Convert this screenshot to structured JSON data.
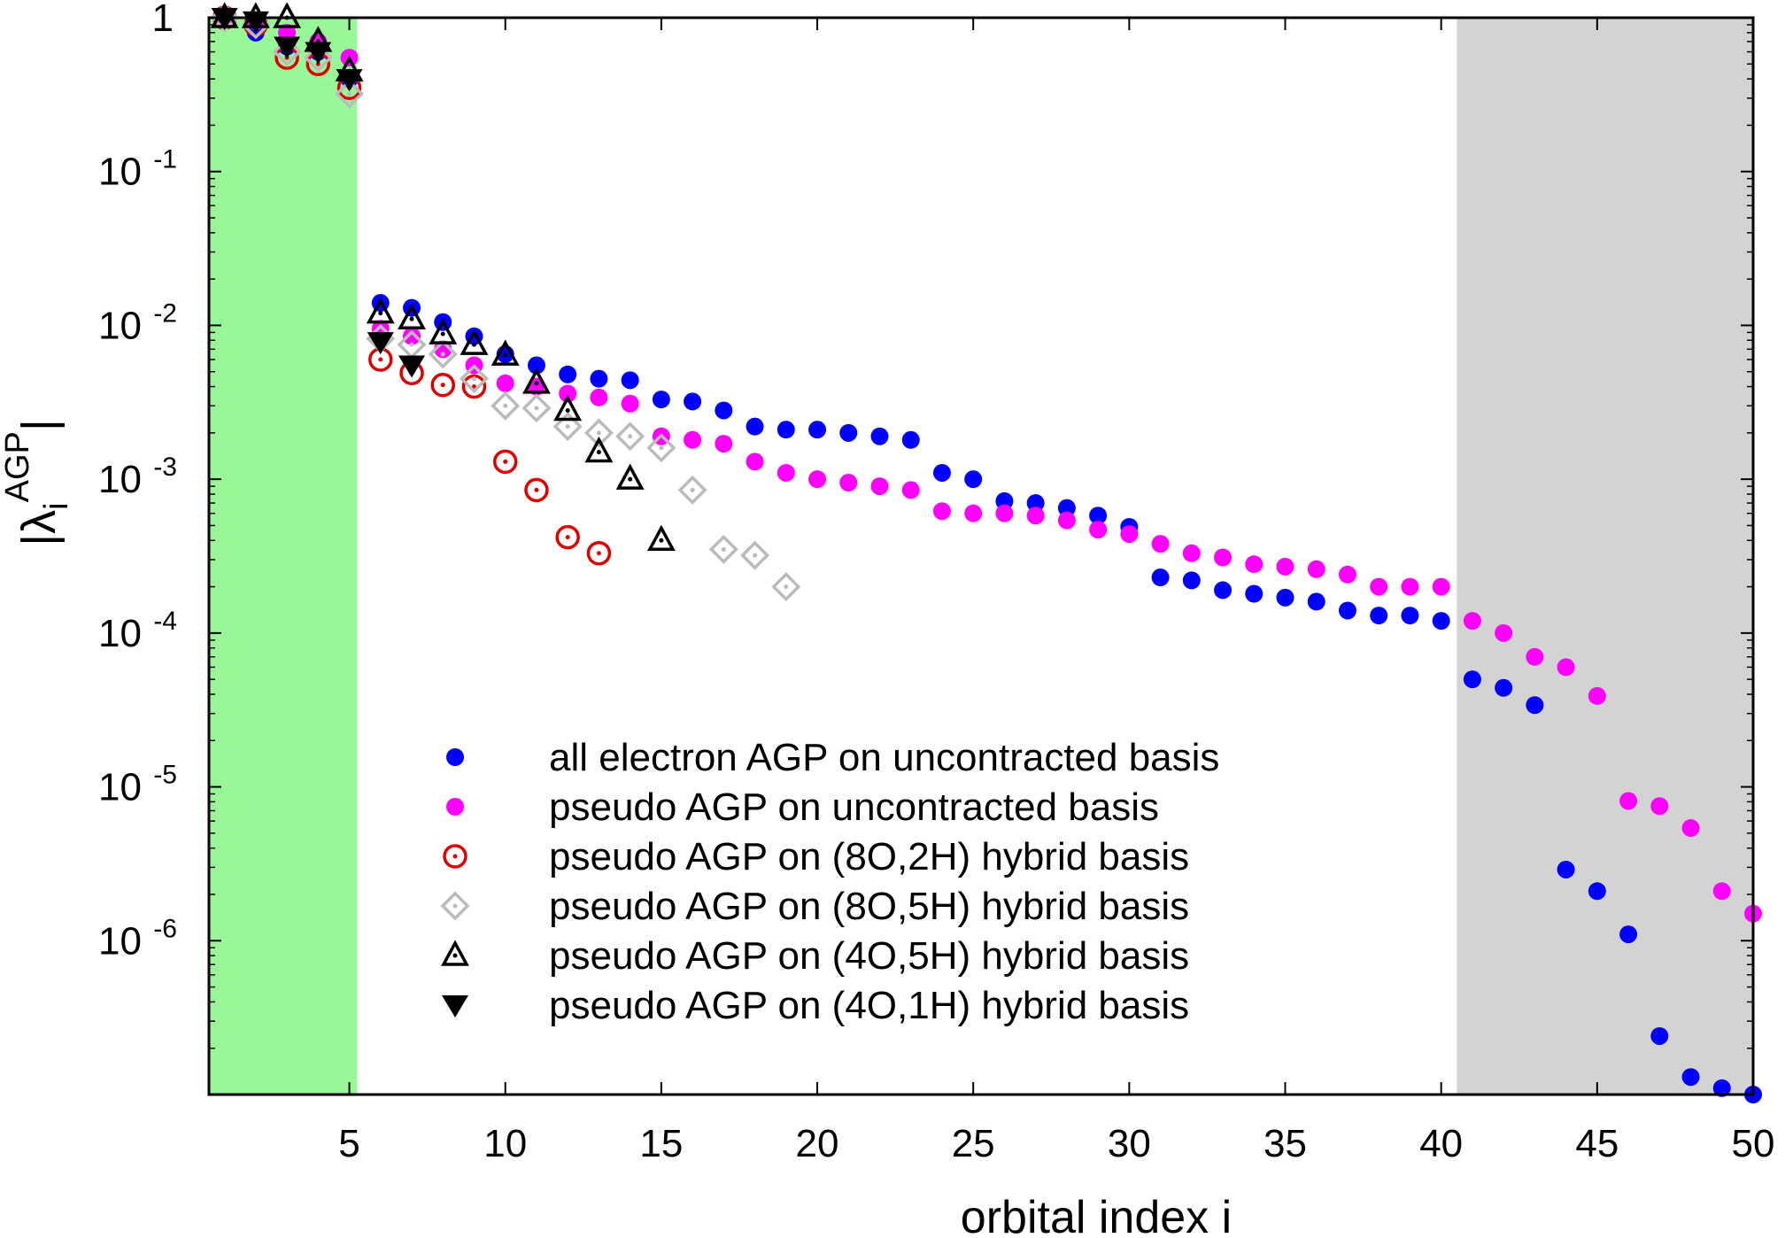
{
  "chart_data": {
    "type": "scatter",
    "title": "",
    "xlabel": "orbital index i",
    "ylabel": "|λ",
    "ylabel_sub": "i",
    "ylabel_sup": "AGP",
    "ylabel_end": "|",
    "x_scale": "linear",
    "y_scale": "log",
    "xlim": [
      0.5,
      50
    ],
    "ylim": [
      1e-07,
      1
    ],
    "grid": false,
    "legend_position": "bottom-left-center",
    "x_ticks": [
      5,
      10,
      15,
      20,
      25,
      30,
      35,
      40,
      45,
      50
    ],
    "x_tick_labels": [
      "5",
      "10",
      "15",
      "20",
      "25",
      "30",
      "35",
      "40",
      "45",
      "50"
    ],
    "y_ticks": [
      {
        "value": 1,
        "base": "1",
        "exp": ""
      },
      {
        "value": 0.1,
        "base": "10",
        "exp": "-1"
      },
      {
        "value": 0.01,
        "base": "10",
        "exp": "-2"
      },
      {
        "value": 0.001,
        "base": "10",
        "exp": "-3"
      },
      {
        "value": 0.0001,
        "base": "10",
        "exp": "-4"
      },
      {
        "value": 1e-05,
        "base": "10",
        "exp": "-5"
      },
      {
        "value": 1e-06,
        "base": "10",
        "exp": "-6"
      }
    ],
    "shaded_regions": [
      {
        "x_from": 0.5,
        "x_to": 5.25,
        "color": "#98f898"
      },
      {
        "x_from": 40.5,
        "x_to": 50,
        "color": "#d3d3d3"
      }
    ],
    "series": [
      {
        "name": "all electron AGP on uncontracted basis",
        "marker": "filled-circle",
        "color": "#0000ff",
        "x": [
          1,
          2,
          3,
          4,
          5,
          6,
          7,
          8,
          9,
          10,
          11,
          12,
          13,
          14,
          15,
          16,
          17,
          18,
          19,
          20,
          21,
          22,
          23,
          24,
          25,
          26,
          27,
          28,
          29,
          30,
          31,
          32,
          33,
          34,
          35,
          36,
          37,
          38,
          39,
          40,
          41,
          42,
          43,
          44,
          45,
          46,
          47,
          48,
          49,
          50
        ],
        "y": [
          1.0,
          0.8,
          0.65,
          0.6,
          0.4,
          0.014,
          0.013,
          0.0105,
          0.0085,
          0.0065,
          0.0055,
          0.0048,
          0.0045,
          0.0044,
          0.0033,
          0.0032,
          0.0028,
          0.0022,
          0.0021,
          0.0021,
          0.002,
          0.0019,
          0.0018,
          0.0011,
          0.001,
          0.00072,
          0.0007,
          0.00065,
          0.00058,
          0.00049,
          0.00023,
          0.00022,
          0.00019,
          0.00018,
          0.00017,
          0.00016,
          0.00014,
          0.00013,
          0.00013,
          0.00012,
          5e-05,
          4.4e-05,
          3.4e-05,
          2.9e-06,
          2.1e-06,
          1.1e-06,
          2.4e-07,
          1.3e-07,
          1.1e-07,
          1e-07
        ]
      },
      {
        "name": "pseudo AGP on uncontracted basis",
        "marker": "filled-circle",
        "color": "#ff00ff",
        "x": [
          1,
          2,
          3,
          4,
          5,
          6,
          7,
          8,
          9,
          10,
          11,
          12,
          13,
          14,
          15,
          16,
          17,
          18,
          19,
          20,
          21,
          22,
          23,
          24,
          25,
          26,
          27,
          28,
          29,
          30,
          31,
          32,
          33,
          34,
          35,
          36,
          37,
          38,
          39,
          40,
          41,
          42,
          43,
          44,
          45,
          46,
          47,
          48,
          49,
          50
        ],
        "y": [
          1.0,
          0.95,
          0.8,
          0.7,
          0.55,
          0.0095,
          0.0085,
          0.007,
          0.0055,
          0.0042,
          0.004,
          0.0036,
          0.0034,
          0.0031,
          0.0019,
          0.0018,
          0.0017,
          0.0013,
          0.0011,
          0.001,
          0.00095,
          0.0009,
          0.00085,
          0.00062,
          0.0006,
          0.0006,
          0.00058,
          0.00054,
          0.00047,
          0.00044,
          0.00038,
          0.00033,
          0.00031,
          0.00028,
          0.00027,
          0.00026,
          0.00024,
          0.0002,
          0.0002,
          0.0002,
          0.00012,
          0.0001,
          7e-05,
          6e-05,
          3.9e-05,
          8.1e-06,
          7.5e-06,
          5.4e-06,
          2.1e-06,
          1.5e-06
        ]
      },
      {
        "name": "pseudo AGP on (8O,2H) hybrid basis",
        "marker": "dotted-circle",
        "color": "#dd0000",
        "x": [
          1,
          2,
          3,
          4,
          5,
          6,
          7,
          8,
          9,
          10,
          11,
          12,
          13
        ],
        "y": [
          1.0,
          0.9,
          0.55,
          0.5,
          0.35,
          0.006,
          0.0049,
          0.0041,
          0.004,
          0.0013,
          0.00085,
          0.00042,
          0.00033
        ]
      },
      {
        "name": "pseudo AGP on (8O,5H) hybrid basis",
        "marker": "dotted-diamond",
        "color": "#bbbbbb",
        "x": [
          1,
          2,
          3,
          4,
          5,
          6,
          7,
          8,
          9,
          10,
          11,
          12,
          13,
          14,
          15,
          16,
          17,
          18,
          19
        ],
        "y": [
          1.0,
          0.9,
          0.6,
          0.55,
          0.32,
          0.0082,
          0.0075,
          0.0065,
          0.0045,
          0.003,
          0.0029,
          0.0022,
          0.002,
          0.0019,
          0.0016,
          0.00085,
          0.00035,
          0.00032,
          0.0002
        ]
      },
      {
        "name": "pseudo AGP on (4O,5H) hybrid basis",
        "marker": "dotted-triangle-up",
        "color": "#000000",
        "x": [
          1,
          2,
          3,
          4,
          5,
          6,
          7,
          8,
          9,
          10,
          11,
          12,
          13,
          14,
          15
        ],
        "y": [
          1.0,
          1.0,
          1.0,
          0.7,
          0.45,
          0.012,
          0.011,
          0.0088,
          0.0075,
          0.0064,
          0.0042,
          0.0028,
          0.0015,
          0.001,
          0.0004
        ]
      },
      {
        "name": "pseudo AGP on (4O,1H) hybrid basis",
        "marker": "filled-triangle-down",
        "color": "#000000",
        "x": [
          1,
          2,
          3,
          4,
          5,
          6,
          7
        ],
        "y": [
          1.0,
          0.95,
          0.65,
          0.6,
          0.4,
          0.0078,
          0.0055
        ]
      }
    ]
  }
}
